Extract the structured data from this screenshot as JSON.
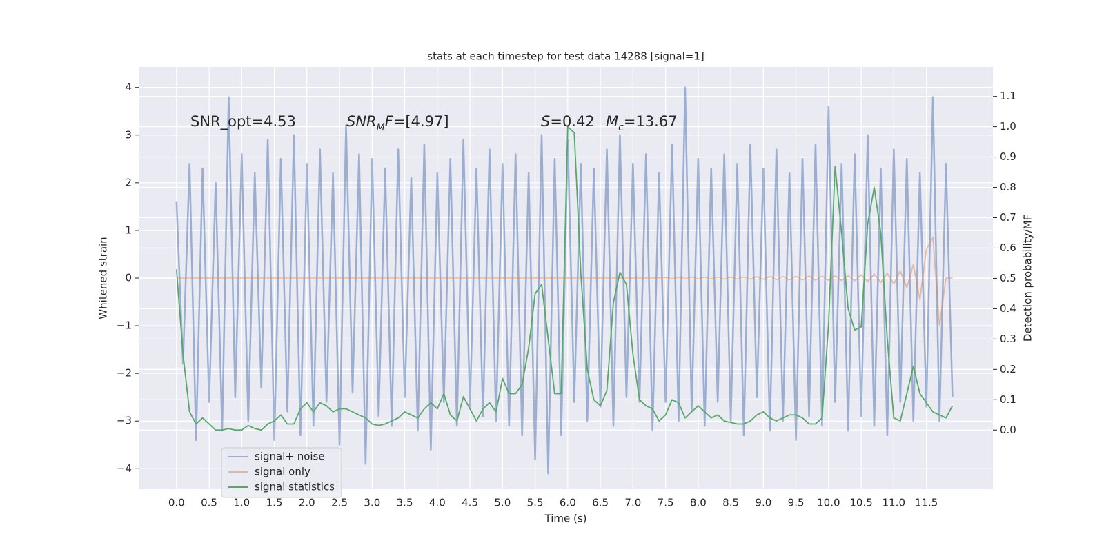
{
  "chart_data": {
    "type": "line",
    "title": "stats at each timestep for test data 14288 [signal=1]",
    "xlabel": "Time (s)",
    "ylabel": "Whitened strain",
    "y2label": "Detection probability/MF",
    "annotations": [
      {
        "runs": [
          {
            "text": "SNR_opt=4.53"
          }
        ]
      },
      {
        "runs": [
          {
            "text": "SNR",
            "italic": true
          },
          {
            "text": "M",
            "italic": true,
            "sub": true
          },
          {
            "text": "F",
            "italic": true
          },
          {
            "text": "=[4.97]"
          }
        ]
      },
      {
        "runs": [
          {
            "text": "S",
            "italic": true
          },
          {
            "text": "=0.42"
          }
        ]
      },
      {
        "runs": [
          {
            "text": "M",
            "italic": true
          },
          {
            "text": "c",
            "italic": true,
            "sub": true
          },
          {
            "text": "=13.67"
          }
        ]
      }
    ],
    "x": [
      0,
      0.1,
      0.2,
      0.3,
      0.4,
      0.5,
      0.6,
      0.7,
      0.8,
      0.9,
      1,
      1.1,
      1.2,
      1.3,
      1.4,
      1.5,
      1.6,
      1.7,
      1.8,
      1.9,
      2,
      2.1,
      2.2,
      2.3,
      2.4,
      2.5,
      2.6,
      2.7,
      2.8,
      2.9,
      3,
      3.1,
      3.2,
      3.3,
      3.4,
      3.5,
      3.6,
      3.7,
      3.8,
      3.9,
      4,
      4.1,
      4.2,
      4.3,
      4.4,
      4.5,
      4.6,
      4.7,
      4.8,
      4.9,
      5,
      5.1,
      5.2,
      5.3,
      5.4,
      5.5,
      5.6,
      5.7,
      5.8,
      5.9,
      6,
      6.1,
      6.2,
      6.3,
      6.4,
      6.5,
      6.6,
      6.7,
      6.8,
      6.9,
      7,
      7.1,
      7.2,
      7.3,
      7.4,
      7.5,
      7.6,
      7.7,
      7.8,
      7.9,
      8,
      8.1,
      8.2,
      8.3,
      8.4,
      8.5,
      8.6,
      8.7,
      8.8,
      8.9,
      9,
      9.1,
      9.2,
      9.3,
      9.4,
      9.5,
      9.6,
      9.7,
      9.8,
      9.9,
      10,
      10.1,
      10.2,
      10.3,
      10.4,
      10.5,
      10.6,
      10.7,
      10.8,
      10.9,
      11,
      11.1,
      11.2,
      11.3,
      11.4,
      11.5,
      11.6,
      11.7,
      11.8,
      11.9
    ],
    "series": [
      {
        "name": "signal+ noise",
        "color": "#4c72b0",
        "opacity": 0.5,
        "values": [
          1.6,
          -1.8,
          2.4,
          -3.4,
          2.3,
          -2.6,
          2.0,
          -3.2,
          3.8,
          -2.5,
          2.6,
          -3.0,
          2.2,
          -2.3,
          2.9,
          -3.4,
          2.5,
          -2.8,
          3.0,
          -3.3,
          2.4,
          -3.1,
          2.7,
          -2.6,
          2.2,
          -3.5,
          3.2,
          -2.4,
          2.6,
          -3.9,
          2.5,
          -2.9,
          2.3,
          -3.1,
          2.7,
          -2.5,
          2.1,
          -3.2,
          2.8,
          -3.6,
          2.2,
          -2.6,
          2.5,
          -3.1,
          2.9,
          -2.7,
          2.3,
          -2.9,
          2.7,
          -3.0,
          2.4,
          -3.1,
          2.6,
          -3.3,
          2.2,
          -3.8,
          3.0,
          -4.1,
          2.5,
          -3.3,
          2.9,
          -2.6,
          2.4,
          -3.0,
          2.3,
          -2.7,
          2.7,
          -3.1,
          3.0,
          -2.5,
          2.4,
          -2.6,
          2.6,
          -3.2,
          2.2,
          -2.6,
          2.8,
          -3.0,
          4.0,
          -2.8,
          2.5,
          -3.1,
          2.3,
          -2.6,
          2.6,
          -3.0,
          2.4,
          -3.3,
          2.8,
          -2.5,
          2.3,
          -3.2,
          2.7,
          -3.0,
          2.2,
          -3.4,
          2.5,
          -2.9,
          2.8,
          -3.1,
          3.6,
          -2.6,
          2.4,
          -3.2,
          2.6,
          -2.9,
          3.0,
          -3.1,
          2.3,
          -3.3,
          2.7,
          -2.6,
          2.5,
          -3.0,
          2.2,
          -2.7,
          3.8,
          -3.0,
          2.4,
          -2.5
        ]
      },
      {
        "name": "signal only",
        "color": "#dd8452",
        "opacity": 0.5,
        "values": [
          0,
          0,
          0,
          0,
          0,
          0,
          0,
          0,
          0,
          0,
          0,
          0,
          0,
          0,
          0,
          0,
          0,
          0,
          0,
          0,
          0,
          0,
          0,
          0,
          0,
          0,
          0,
          0,
          0,
          0,
          0,
          0,
          0,
          0,
          0,
          0,
          0,
          0,
          0,
          0,
          0,
          0,
          0,
          0,
          0,
          0,
          0,
          0,
          0,
          0,
          0,
          0,
          0,
          0,
          0,
          0,
          0,
          0,
          0,
          0,
          0,
          0,
          0,
          0,
          0,
          0,
          0,
          0,
          0,
          0,
          0,
          0,
          0,
          0,
          0,
          0.01,
          -0.01,
          0.01,
          -0.01,
          0.015,
          -0.015,
          0.015,
          -0.015,
          0.02,
          -0.02,
          0.02,
          -0.02,
          0.02,
          -0.02,
          0.025,
          -0.025,
          0.03,
          -0.03,
          0.03,
          -0.035,
          0.035,
          -0.035,
          0.04,
          -0.04,
          0.04,
          -0.045,
          0.045,
          -0.05,
          0.05,
          -0.055,
          0.065,
          -0.07,
          0.08,
          -0.09,
          0.1,
          -0.12,
          0.15,
          -0.2,
          0.28,
          -0.45,
          0.6,
          0.85,
          -1.0,
          0,
          0
        ]
      },
      {
        "name": "signal statistics",
        "color": "#55a868",
        "opacity": 1,
        "axis": "y2",
        "values": [
          0.53,
          0.25,
          0.06,
          0.02,
          0.04,
          0.02,
          0.0,
          0.0,
          0.005,
          0.0,
          0.0,
          0.015,
          0.005,
          0.0,
          0.02,
          0.03,
          0.05,
          0.02,
          0.02,
          0.07,
          0.09,
          0.06,
          0.09,
          0.08,
          0.06,
          0.07,
          0.07,
          0.06,
          0.05,
          0.04,
          0.02,
          0.015,
          0.02,
          0.03,
          0.04,
          0.06,
          0.05,
          0.04,
          0.07,
          0.09,
          0.07,
          0.12,
          0.05,
          0.03,
          0.11,
          0.07,
          0.03,
          0.07,
          0.09,
          0.06,
          0.17,
          0.12,
          0.12,
          0.15,
          0.27,
          0.45,
          0.48,
          0.3,
          0.12,
          0.12,
          1.0,
          0.98,
          0.52,
          0.2,
          0.1,
          0.08,
          0.13,
          0.42,
          0.52,
          0.48,
          0.25,
          0.1,
          0.08,
          0.07,
          0.03,
          0.05,
          0.1,
          0.09,
          0.04,
          0.06,
          0.08,
          0.06,
          0.04,
          0.05,
          0.03,
          0.025,
          0.02,
          0.02,
          0.03,
          0.05,
          0.06,
          0.04,
          0.03,
          0.04,
          0.05,
          0.05,
          0.04,
          0.02,
          0.02,
          0.04,
          0.35,
          0.87,
          0.65,
          0.4,
          0.33,
          0.34,
          0.68,
          0.8,
          0.65,
          0.3,
          0.04,
          0.03,
          0.12,
          0.21,
          0.12,
          0.09,
          0.06,
          0.05,
          0.04,
          0.08
        ]
      }
    ],
    "xlim": [
      -0.58,
      12.52
    ],
    "ylim": [
      -4.43,
      4.43
    ],
    "y2lim": [
      -0.195,
      1.197
    ],
    "xticks": [
      {
        "value": 0,
        "label": "0.0"
      },
      0.5,
      {
        "value": 1,
        "label": "1.0"
      },
      1.5,
      {
        "value": 2,
        "label": "2.0"
      },
      2.5,
      {
        "value": 3,
        "label": "3.0"
      },
      3.5,
      {
        "value": 4,
        "label": "4.0"
      },
      4.5,
      {
        "value": 5,
        "label": "5.0"
      },
      5.5,
      {
        "value": 6,
        "label": "6.0"
      },
      6.5,
      {
        "value": 7,
        "label": "7.0"
      },
      7.5,
      {
        "value": 8,
        "label": "8.0"
      },
      8.5,
      {
        "value": 9,
        "label": "9.0"
      },
      9.5,
      {
        "value": 10,
        "label": "10.0"
      },
      10.5,
      {
        "value": 11,
        "label": "11.0"
      },
      11.5
    ],
    "yticks": [
      {
        "value": -4,
        "label": "−4"
      },
      {
        "value": -3,
        "label": "−3"
      },
      {
        "value": -2,
        "label": "−2"
      },
      {
        "value": -1,
        "label": "−1"
      },
      0,
      1,
      2,
      3,
      4
    ],
    "y2ticks": [
      {
        "value": 0,
        "label": "0.0"
      },
      0.1,
      0.2,
      0.3,
      0.4,
      0.5,
      0.6,
      0.7,
      0.8,
      0.9,
      {
        "value": 1,
        "label": "1.0"
      },
      1.1
    ],
    "grid": true,
    "legend": "lower left"
  }
}
